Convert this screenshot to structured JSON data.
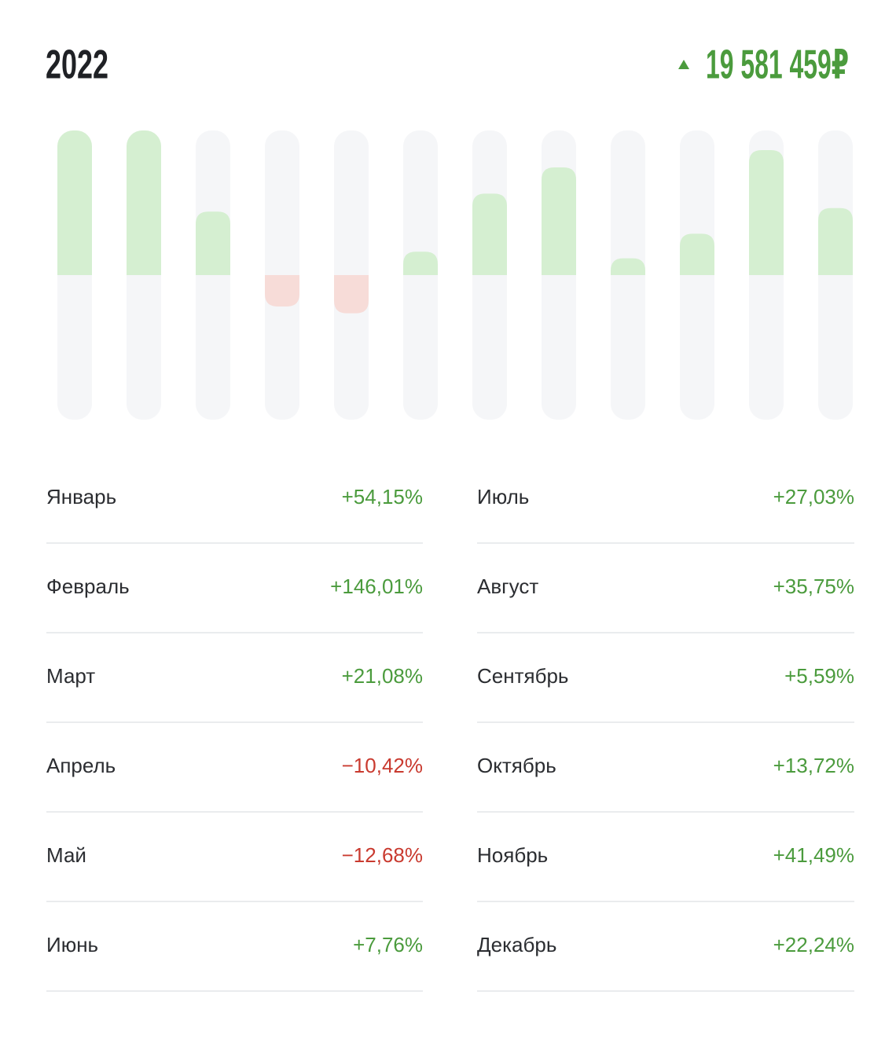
{
  "chart_data": {
    "type": "bar",
    "title": "2022",
    "total": "19 581 459₽",
    "categories": [
      "Январь",
      "Февраль",
      "Март",
      "Апрель",
      "Май",
      "Июнь",
      "Июль",
      "Август",
      "Сентябрь",
      "Октябрь",
      "Ноябрь",
      "Декабрь"
    ],
    "values": [
      54.15,
      146.01,
      21.08,
      -10.42,
      -12.68,
      7.76,
      27.03,
      35.75,
      5.59,
      13.72,
      41.49,
      22.24
    ],
    "value_labels": [
      "+54,15%",
      "+146,01%",
      "+21,08%",
      "−10,42%",
      "−12,68%",
      "+7,76%",
      "+27,03%",
      "+35,75%",
      "+5,59%",
      "+13,72%",
      "+41,49%",
      "+22,24%"
    ],
    "ylim": [
      -48,
      48
    ],
    "colors": {
      "positive": "#d5efd1",
      "negative": "#f7dcd8",
      "track": "#f5f6f8",
      "positive_text": "#4b9b3d",
      "negative_text": "#c93a2f"
    }
  }
}
